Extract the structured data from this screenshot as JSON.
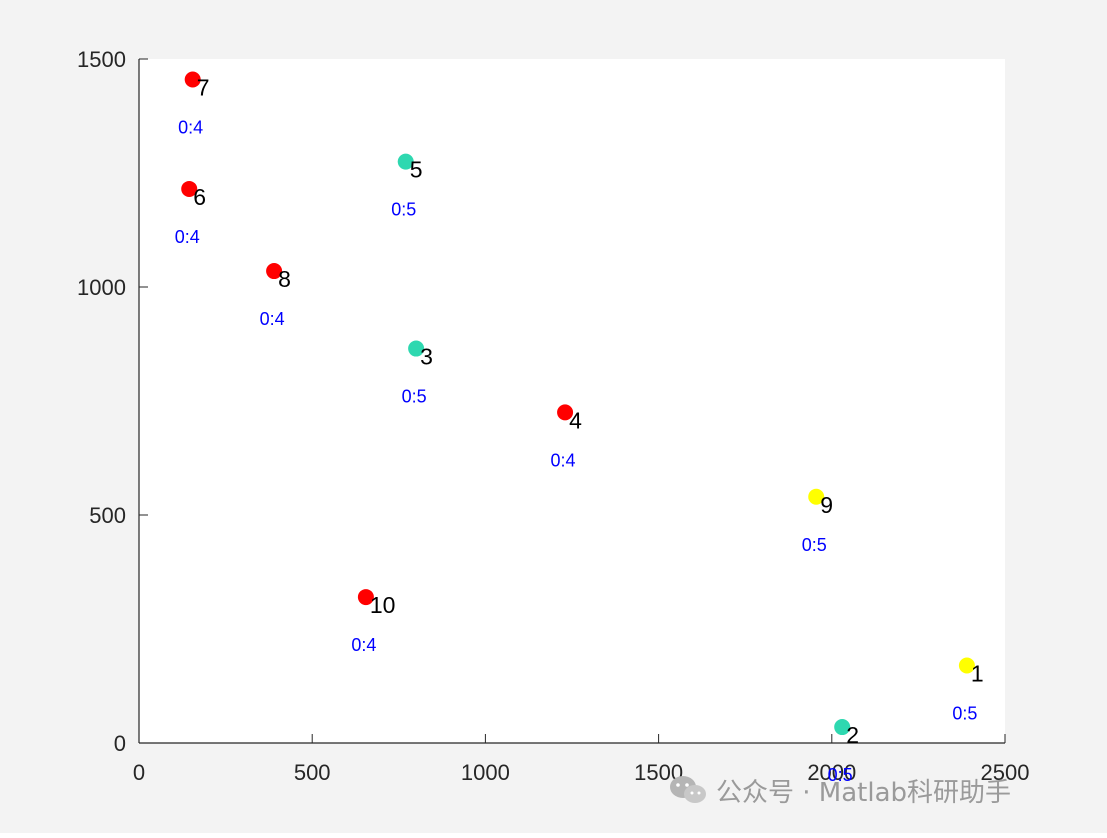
{
  "chart_data": {
    "type": "scatter",
    "xlim": [
      0,
      2500
    ],
    "ylim": [
      0,
      1500
    ],
    "xticks": [
      0,
      500,
      1000,
      1500,
      2000,
      2500
    ],
    "yticks": [
      0,
      500,
      1000,
      1500
    ],
    "grid": false,
    "points": [
      {
        "label": "1",
        "sublabel": "0:5",
        "x": 2390,
        "y": 170,
        "color": "#ffff00"
      },
      {
        "label": "2",
        "sublabel": "0:5",
        "x": 2030,
        "y": 35,
        "color": "#2ed8b0"
      },
      {
        "label": "3",
        "sublabel": "0:5",
        "x": 800,
        "y": 865,
        "color": "#2ed8b0"
      },
      {
        "label": "4",
        "sublabel": "0:4",
        "x": 1230,
        "y": 725,
        "color": "#ff0000"
      },
      {
        "label": "5",
        "sublabel": "0:5",
        "x": 770,
        "y": 1275,
        "color": "#2ed8b0"
      },
      {
        "label": "6",
        "sublabel": "0:4",
        "x": 145,
        "y": 1215,
        "color": "#ff0000"
      },
      {
        "label": "7",
        "sublabel": "0:4",
        "x": 155,
        "y": 1455,
        "color": "#ff0000"
      },
      {
        "label": "8",
        "sublabel": "0:4",
        "x": 390,
        "y": 1035,
        "color": "#ff0000"
      },
      {
        "label": "9",
        "sublabel": "0:5",
        "x": 1955,
        "y": 540,
        "color": "#ffff00"
      },
      {
        "label": "10",
        "sublabel": "0:4",
        "x": 655,
        "y": 320,
        "color": "#ff0000"
      }
    ]
  },
  "watermark": {
    "text": "公众号 · Matlab科研助手",
    "icon": "wechat-icon"
  }
}
